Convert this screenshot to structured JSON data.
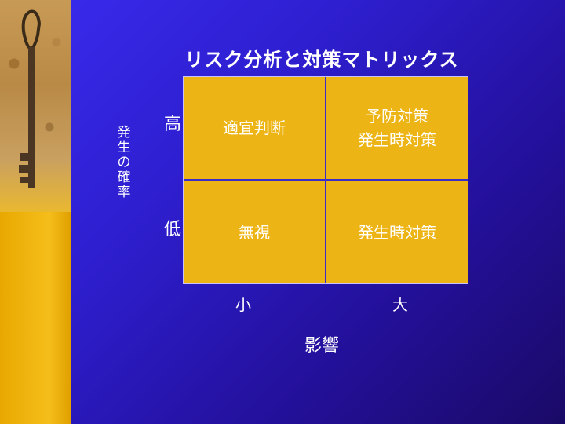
{
  "title": "リスク分析と対策マトリックス",
  "y_axis_label": "発生の確率",
  "row_labels": {
    "high": "高",
    "low": "低"
  },
  "col_labels": {
    "small": "小",
    "large": "大"
  },
  "x_axis_label": "影響",
  "cells": {
    "top_left": "適宜判断",
    "top_right_line1": "予防対策",
    "top_right_line2": "発生時対策",
    "bottom_left": "無視",
    "bottom_right": "発生時対策"
  },
  "colors": {
    "background": "#2e1fd0",
    "matrix_fill": "#ecb414",
    "left_strip": "#f5be1a"
  }
}
